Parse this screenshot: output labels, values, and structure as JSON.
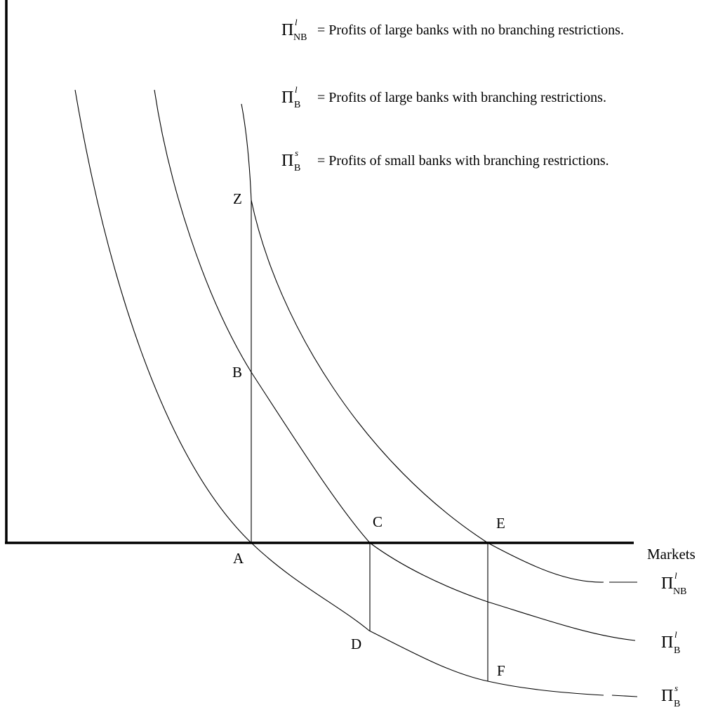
{
  "x_axis_label": "Markets",
  "points": {
    "A": "A",
    "B": "B",
    "C": "C",
    "D": "D",
    "E": "E",
    "F": "F",
    "Z": "Z"
  },
  "legend": [
    {
      "symbol": "Π",
      "sup": "l",
      "sub": "NB",
      "text": "= Profits of large banks with no branching restrictions."
    },
    {
      "symbol": "Π",
      "sup": "l",
      "sub": "B",
      "text": "= Profits of large banks with branching restrictions."
    },
    {
      "symbol": "Π",
      "sup": "s",
      "sub": "B",
      "text": "= Profits of small banks with branching restrictions."
    }
  ],
  "curve_labels": [
    {
      "symbol": "Π",
      "sup": "l",
      "sub": "NB"
    },
    {
      "symbol": "Π",
      "sup": "l",
      "sub": "B"
    },
    {
      "symbol": "Π",
      "sup": "s",
      "sub": "B"
    }
  ]
}
